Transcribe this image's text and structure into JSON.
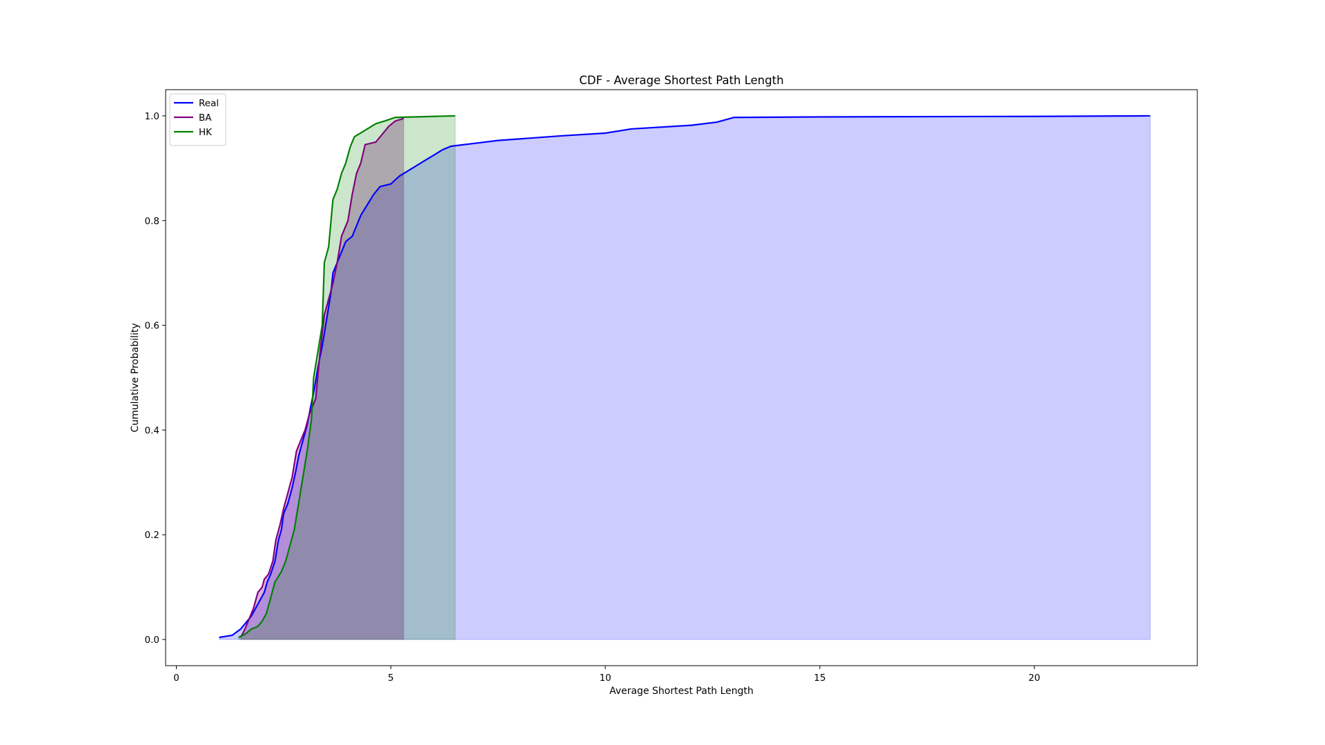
{
  "chart_data": {
    "type": "line",
    "title": "CDF - Average Shortest Path Length",
    "xlabel": "Average Shortest Path Length",
    "ylabel": "Cumulative Probability",
    "xlim": [
      -0.25,
      23.8
    ],
    "ylim": [
      -0.05,
      1.05
    ],
    "xticks": [
      0,
      5,
      10,
      15,
      20
    ],
    "xtick_labels": [
      "0",
      "5",
      "10",
      "15",
      "20"
    ],
    "yticks": [
      0.0,
      0.2,
      0.4,
      0.6,
      0.8,
      1.0
    ],
    "ytick_labels": [
      "0.0",
      "0.2",
      "0.4",
      "0.6",
      "0.8",
      "1.0"
    ],
    "grid": false,
    "legend_position": "top-left",
    "filled_under_curves": true,
    "series": [
      {
        "name": "Real",
        "color": "#0000ff",
        "fill_color": "#0000ff",
        "fill_opacity": 0.2,
        "points": [
          [
            1.0,
            0.004
          ],
          [
            1.3,
            0.008
          ],
          [
            1.5,
            0.02
          ],
          [
            1.6,
            0.03
          ],
          [
            1.75,
            0.045
          ],
          [
            1.85,
            0.06
          ],
          [
            1.95,
            0.075
          ],
          [
            2.05,
            0.09
          ],
          [
            2.12,
            0.11
          ],
          [
            2.2,
            0.125
          ],
          [
            2.3,
            0.15
          ],
          [
            2.38,
            0.19
          ],
          [
            2.45,
            0.21
          ],
          [
            2.5,
            0.24
          ],
          [
            2.6,
            0.26
          ],
          [
            2.7,
            0.29
          ],
          [
            2.78,
            0.32
          ],
          [
            2.85,
            0.35
          ],
          [
            2.95,
            0.38
          ],
          [
            3.05,
            0.41
          ],
          [
            3.12,
            0.44
          ],
          [
            3.22,
            0.48
          ],
          [
            3.3,
            0.52
          ],
          [
            3.4,
            0.56
          ],
          [
            3.5,
            0.61
          ],
          [
            3.6,
            0.66
          ],
          [
            3.65,
            0.7
          ],
          [
            3.75,
            0.72
          ],
          [
            3.85,
            0.74
          ],
          [
            3.95,
            0.76
          ],
          [
            4.1,
            0.77
          ],
          [
            4.2,
            0.79
          ],
          [
            4.3,
            0.81
          ],
          [
            4.45,
            0.83
          ],
          [
            4.6,
            0.85
          ],
          [
            4.75,
            0.865
          ],
          [
            5.0,
            0.87
          ],
          [
            5.2,
            0.885
          ],
          [
            5.4,
            0.895
          ],
          [
            5.6,
            0.905
          ],
          [
            5.8,
            0.915
          ],
          [
            6.0,
            0.925
          ],
          [
            6.2,
            0.935
          ],
          [
            6.4,
            0.942
          ],
          [
            7.0,
            0.948
          ],
          [
            7.5,
            0.953
          ],
          [
            8.0,
            0.956
          ],
          [
            9.0,
            0.962
          ],
          [
            10.0,
            0.967
          ],
          [
            10.6,
            0.975
          ],
          [
            12.0,
            0.982
          ],
          [
            12.6,
            0.988
          ],
          [
            13.0,
            0.997
          ],
          [
            15.0,
            0.998
          ],
          [
            20.0,
            0.999
          ],
          [
            22.7,
            1.0
          ]
        ]
      },
      {
        "name": "BA",
        "color": "#800080",
        "fill_color": "#800080",
        "fill_opacity": 0.3,
        "points": [
          [
            1.5,
            0.004
          ],
          [
            1.6,
            0.02
          ],
          [
            1.7,
            0.04
          ],
          [
            1.8,
            0.06
          ],
          [
            1.9,
            0.09
          ],
          [
            2.0,
            0.1
          ],
          [
            2.05,
            0.115
          ],
          [
            2.15,
            0.125
          ],
          [
            2.25,
            0.15
          ],
          [
            2.32,
            0.19
          ],
          [
            2.42,
            0.22
          ],
          [
            2.5,
            0.25
          ],
          [
            2.6,
            0.28
          ],
          [
            2.7,
            0.31
          ],
          [
            2.8,
            0.36
          ],
          [
            2.9,
            0.38
          ],
          [
            3.0,
            0.4
          ],
          [
            3.1,
            0.43
          ],
          [
            3.25,
            0.46
          ],
          [
            3.35,
            0.55
          ],
          [
            3.45,
            0.62
          ],
          [
            3.55,
            0.65
          ],
          [
            3.65,
            0.68
          ],
          [
            3.75,
            0.72
          ],
          [
            3.85,
            0.77
          ],
          [
            4.0,
            0.8
          ],
          [
            4.1,
            0.85
          ],
          [
            4.2,
            0.89
          ],
          [
            4.3,
            0.91
          ],
          [
            4.4,
            0.945
          ],
          [
            4.65,
            0.95
          ],
          [
            4.8,
            0.965
          ],
          [
            4.95,
            0.98
          ],
          [
            5.1,
            0.99
          ],
          [
            5.3,
            0.995
          ]
        ]
      },
      {
        "name": "HK",
        "color": "#008000",
        "fill_color": "#008000",
        "fill_opacity": 0.2,
        "points": [
          [
            1.45,
            0.004
          ],
          [
            1.6,
            0.01
          ],
          [
            1.75,
            0.02
          ],
          [
            1.9,
            0.025
          ],
          [
            2.0,
            0.035
          ],
          [
            2.1,
            0.05
          ],
          [
            2.2,
            0.08
          ],
          [
            2.3,
            0.11
          ],
          [
            2.45,
            0.13
          ],
          [
            2.55,
            0.15
          ],
          [
            2.65,
            0.18
          ],
          [
            2.75,
            0.21
          ],
          [
            2.85,
            0.26
          ],
          [
            2.95,
            0.31
          ],
          [
            3.05,
            0.36
          ],
          [
            3.15,
            0.42
          ],
          [
            3.2,
            0.5
          ],
          [
            3.3,
            0.55
          ],
          [
            3.4,
            0.6
          ],
          [
            3.45,
            0.72
          ],
          [
            3.55,
            0.75
          ],
          [
            3.65,
            0.84
          ],
          [
            3.75,
            0.86
          ],
          [
            3.85,
            0.89
          ],
          [
            3.95,
            0.91
          ],
          [
            4.05,
            0.94
          ],
          [
            4.15,
            0.96
          ],
          [
            4.45,
            0.975
          ],
          [
            4.65,
            0.985
          ],
          [
            4.85,
            0.99
          ],
          [
            5.1,
            0.997
          ],
          [
            6.0,
            0.999
          ],
          [
            6.5,
            1.0
          ]
        ]
      }
    ]
  }
}
